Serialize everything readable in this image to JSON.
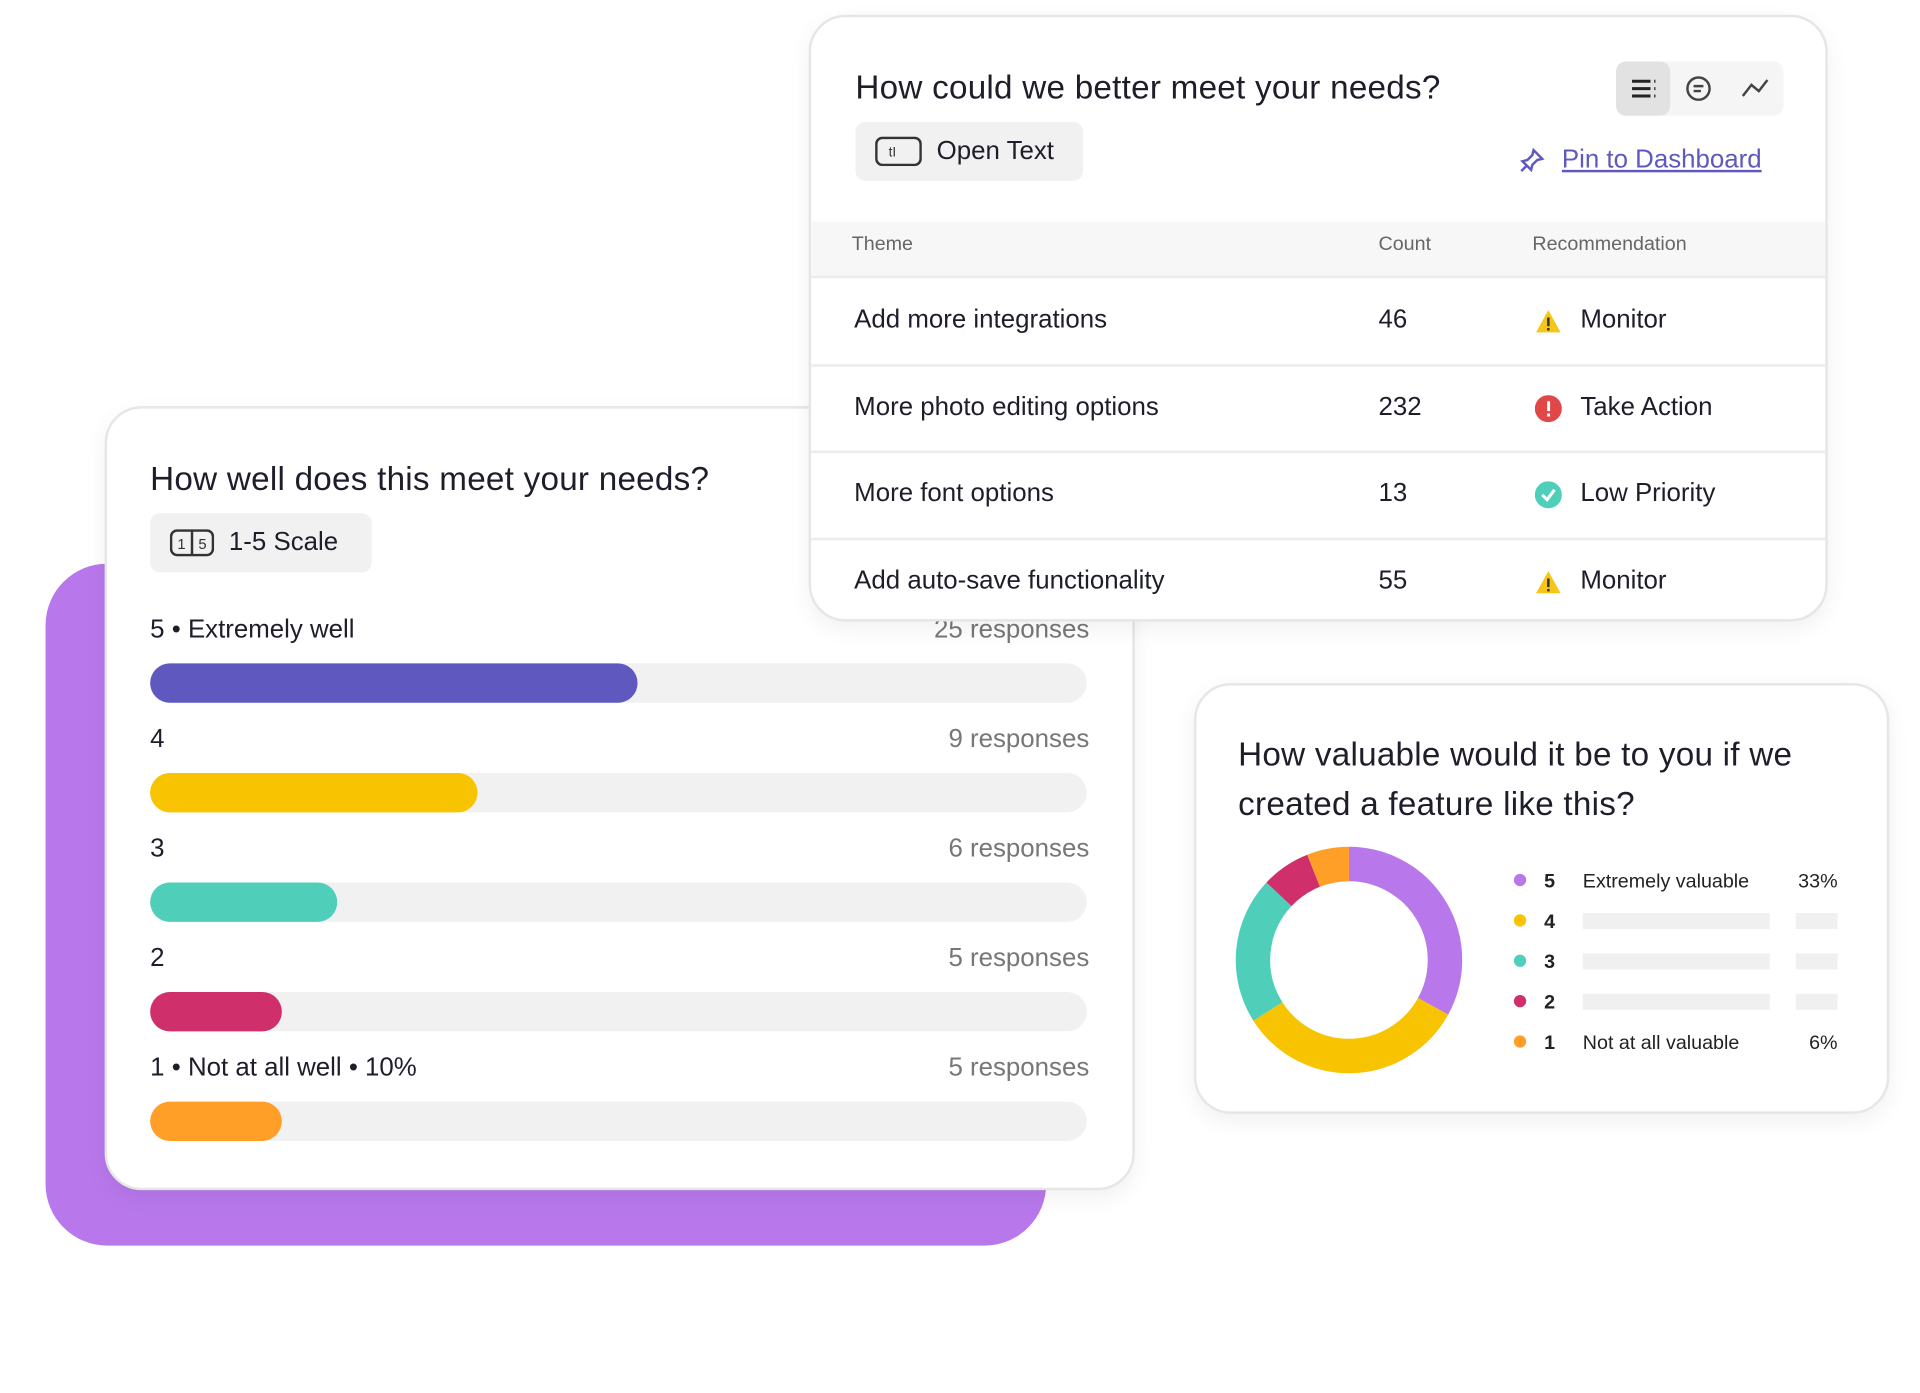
{
  "scale_card": {
    "title": "How well does this meet your needs?",
    "badge": "1-5 Scale",
    "rows": [
      {
        "label": "5 • Extremely well",
        "responses": "25 responses",
        "fill": 52,
        "color": "#5f58bf"
      },
      {
        "label": "4",
        "responses": "9 responses",
        "fill": 35,
        "color": "#f8c300"
      },
      {
        "label": "3",
        "responses": "6 responses",
        "fill": 20,
        "color": "#4fcfb9"
      },
      {
        "label": "2",
        "responses": "5 responses",
        "fill": 14,
        "color": "#cf2f6b"
      },
      {
        "label": "1 • Not at all well • 10%",
        "responses": "5 responses",
        "fill": 14,
        "color": "#ff9f27"
      }
    ],
    "fill_lim": [
      0,
      100
    ]
  },
  "table_card": {
    "title": "How could we better meet your needs?",
    "badge": "Open Text",
    "link": "Pin to Dashboard",
    "columns": [
      "Theme",
      "Count",
      "Recommendation"
    ],
    "rows": [
      {
        "theme": "Add more integrations",
        "count": "46",
        "recommendation": "Monitor",
        "icon": "warning"
      },
      {
        "theme": "More photo editing options",
        "count": "232",
        "recommendation": "Take Action",
        "icon": "alert"
      },
      {
        "theme": "More font options",
        "count": "13",
        "recommendation": "Low Priority",
        "icon": "check"
      },
      {
        "theme": "Add auto-save functionality",
        "count": "55",
        "recommendation": "Monitor",
        "icon": "warning"
      }
    ]
  },
  "chart_data": {
    "type": "donut",
    "title": "How valuable would it be to you if we created a feature like this?",
    "categories": [
      "5",
      "4",
      "3",
      "2",
      "1"
    ],
    "labels": [
      "Extremely valuable",
      null,
      null,
      null,
      "Not at all valuable"
    ],
    "values": [
      33,
      33,
      21,
      7,
      6
    ],
    "value_labels": [
      "33%",
      null,
      null,
      null,
      "6%"
    ],
    "colors": [
      "#b878ec",
      "#f8c300",
      "#4fcfb9",
      "#cf2f6b",
      "#ff9f27"
    ]
  }
}
